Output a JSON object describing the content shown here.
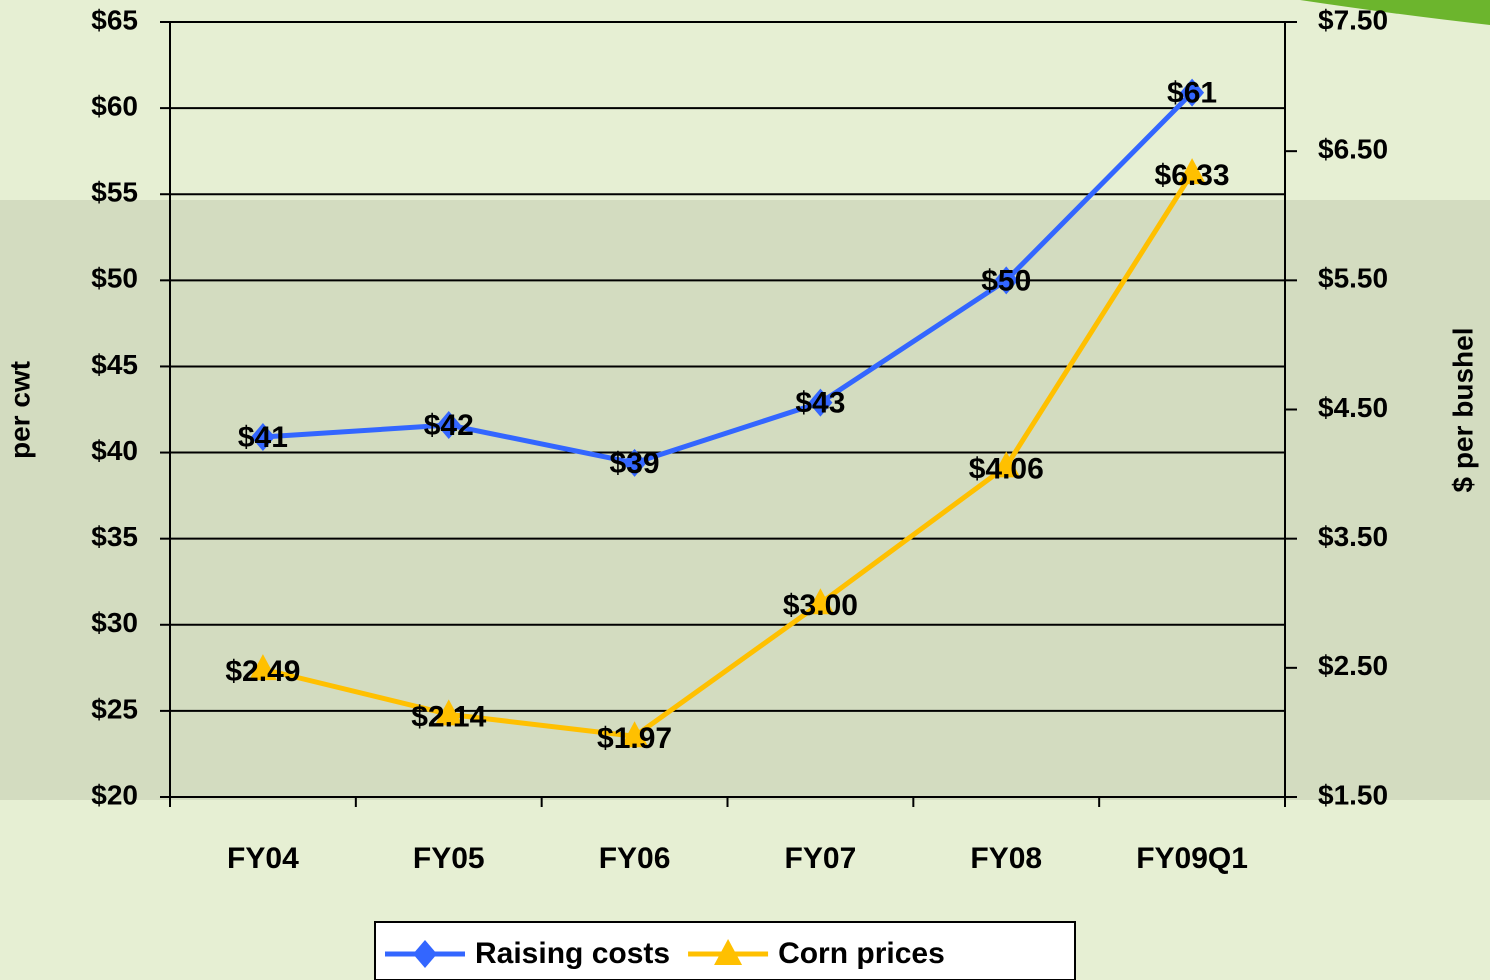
{
  "chart_data": {
    "type": "line",
    "y_label": "per cwt",
    "y2_label": "$ per bushel",
    "categories": [
      "FY04",
      "FY05",
      "FY06",
      "FY07",
      "FY08",
      "FY09Q1"
    ],
    "series": [
      {
        "name": "Raising costs",
        "color": "#3366ff",
        "marker": "diamond",
        "values": [
          40.9,
          41.6,
          39.4,
          42.9,
          50.0,
          60.9
        ],
        "value_labels": [
          "$41",
          "$42",
          "$39",
          "$43",
          "$50",
          "$61"
        ]
      },
      {
        "name": "Corn prices",
        "color": "#ffc000",
        "marker": "triangle",
        "axis": "y2",
        "values": [
          2.49,
          2.14,
          1.97,
          3.0,
          4.06,
          6.33
        ],
        "value_labels": [
          "$2.49",
          "$2.14",
          "$1.97",
          "$3.00",
          "$4.06",
          "$6.33"
        ]
      }
    ],
    "ylim": [
      20,
      65
    ],
    "yticks": [
      {
        "value": 20,
        "label": "$20"
      },
      {
        "value": 25,
        "label": "$25"
      },
      {
        "value": 30,
        "label": "$30"
      },
      {
        "value": 35,
        "label": "$35"
      },
      {
        "value": 40,
        "label": "$40"
      },
      {
        "value": 45,
        "label": "$45"
      },
      {
        "value": 50,
        "label": "$50"
      },
      {
        "value": 55,
        "label": "$55"
      },
      {
        "value": 60,
        "label": "$60"
      },
      {
        "value": 65,
        "label": "$65"
      }
    ],
    "y2lim": [
      1.5,
      7.5
    ],
    "y2ticks": [
      {
        "value": 1.5,
        "label": "$1.50"
      },
      {
        "value": 2.5,
        "label": "$2.50"
      },
      {
        "value": 3.5,
        "label": "$3.50"
      },
      {
        "value": 4.5,
        "label": "$4.50"
      },
      {
        "value": 5.5,
        "label": "$5.50"
      },
      {
        "value": 6.5,
        "label": "$6.50"
      },
      {
        "value": 7.5,
        "label": "$7.50"
      }
    ],
    "grid": true,
    "legend": "bottom"
  }
}
